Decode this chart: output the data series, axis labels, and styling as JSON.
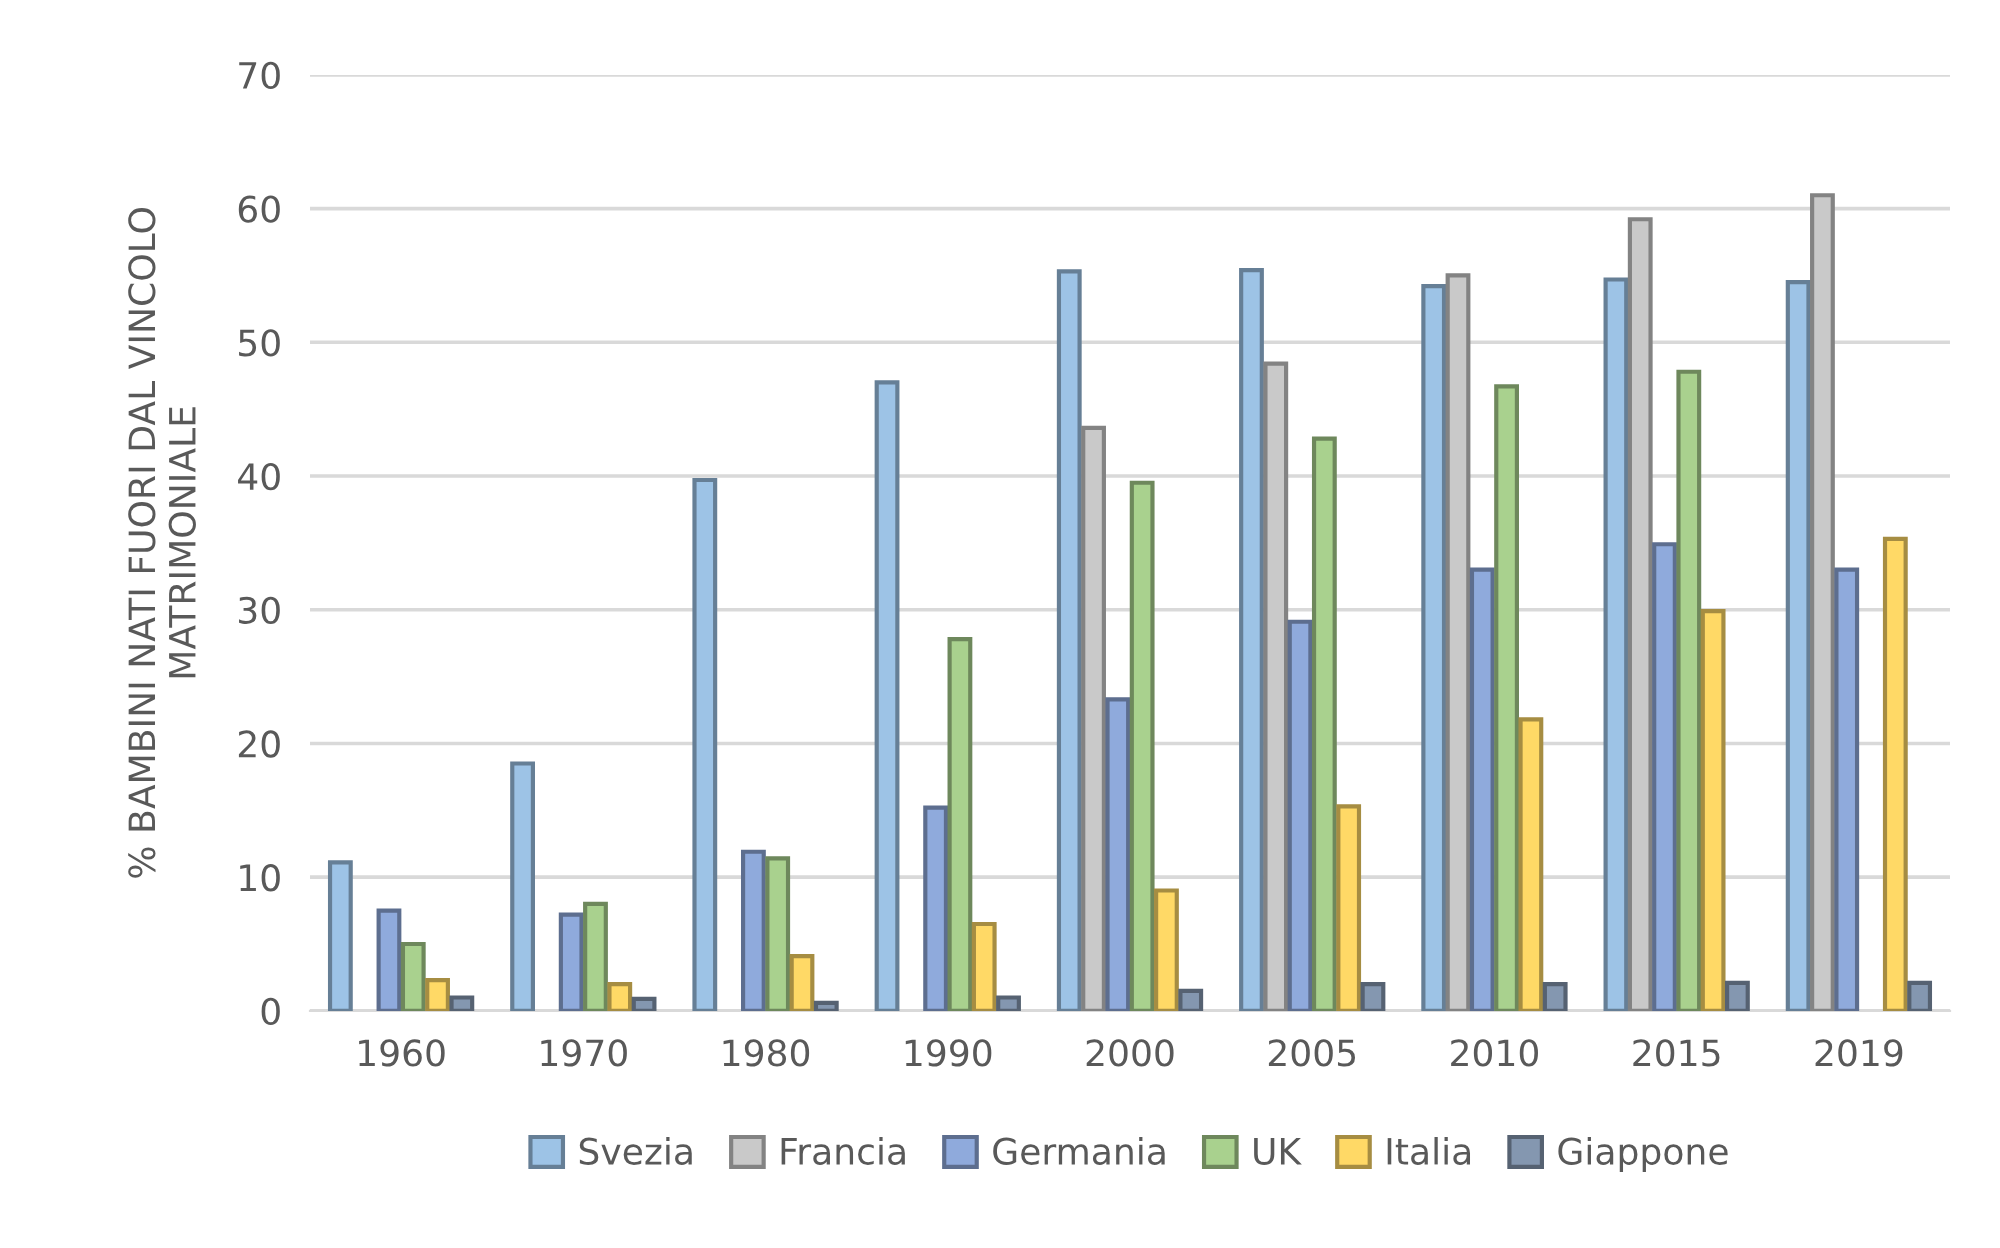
{
  "chart_data": {
    "type": "bar",
    "ylabel": "% BAMBINI NATI FUORI DAL VINCOLO\nMATRIMONIALE",
    "categories": [
      "1960",
      "1970",
      "1980",
      "1990",
      "2000",
      "2005",
      "2010",
      "2015",
      "2019"
    ],
    "series": [
      {
        "name": "Svezia",
        "color": "#9dc3e6",
        "values": [
          11.1,
          18.5,
          39.7,
          47.0,
          55.3,
          55.4,
          54.2,
          54.7,
          54.5
        ]
      },
      {
        "name": "Francia",
        "color": "#c9c9c9",
        "values": [
          null,
          null,
          null,
          null,
          43.6,
          48.4,
          55.0,
          59.2,
          61.0
        ]
      },
      {
        "name": "Germania",
        "color": "#8faadc",
        "values": [
          7.5,
          7.2,
          11.9,
          15.2,
          23.3,
          29.1,
          33.0,
          34.9,
          33.0
        ]
      },
      {
        "name": "UK",
        "color": "#a9d18e",
        "values": [
          5.0,
          8.0,
          11.4,
          27.8,
          39.5,
          42.8,
          46.7,
          47.8,
          null
        ]
      },
      {
        "name": "Italia",
        "color": "#ffd966",
        "values": [
          2.3,
          2.0,
          4.1,
          6.5,
          9.0,
          15.3,
          21.8,
          29.9,
          35.3
        ]
      },
      {
        "name": "Giappone",
        "color": "#8497b0",
        "values": [
          1.0,
          0.9,
          0.6,
          1.0,
          1.5,
          2.0,
          2.0,
          2.1,
          2.1
        ]
      }
    ],
    "ylim": [
      0,
      70
    ],
    "yticks": [
      0,
      10,
      20,
      30,
      40,
      50,
      60,
      70
    ],
    "grid": "y",
    "legend": "bottom"
  }
}
